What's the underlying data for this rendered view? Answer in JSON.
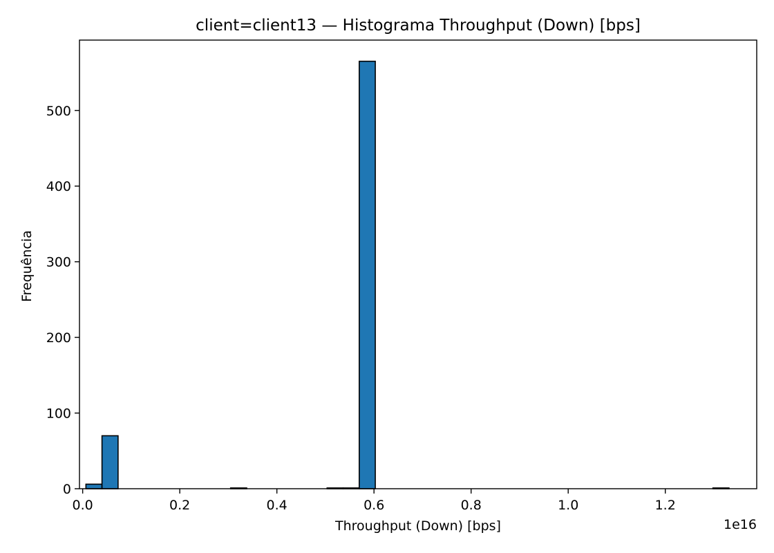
{
  "chart_data": {
    "type": "bar",
    "title": "client=client13 — Histograma Throughput (Down) [bps]",
    "xlabel": "Throughput (Down) [bps]",
    "ylabel": "Frequência",
    "x_offset_label": "1e16",
    "x_scale": 1e+16,
    "xlim": [
      -0.0066,
      1.3883
    ],
    "ylim": [
      0,
      593
    ],
    "bin_width": 0.0331,
    "bins": [
      {
        "start": 0.0067,
        "count": 6
      },
      {
        "start": 0.0398,
        "count": 70
      },
      {
        "start": 0.3047,
        "count": 1
      },
      {
        "start": 0.5034,
        "count": 1
      },
      {
        "start": 0.5365,
        "count": 1
      },
      {
        "start": 0.5696,
        "count": 565
      },
      {
        "start": 1.2981,
        "count": 1
      }
    ],
    "x_ticks": [
      {
        "value": 0.0,
        "label": "0.0"
      },
      {
        "value": 0.2,
        "label": "0.2"
      },
      {
        "value": 0.4,
        "label": "0.4"
      },
      {
        "value": 0.6,
        "label": "0.6"
      },
      {
        "value": 0.8,
        "label": "0.8"
      },
      {
        "value": 1.0,
        "label": "1.0"
      },
      {
        "value": 1.2,
        "label": "1.2"
      }
    ],
    "y_ticks": [
      {
        "value": 0,
        "label": "0"
      },
      {
        "value": 100,
        "label": "100"
      },
      {
        "value": 200,
        "label": "200"
      },
      {
        "value": 300,
        "label": "300"
      },
      {
        "value": 400,
        "label": "400"
      },
      {
        "value": 500,
        "label": "500"
      }
    ],
    "grid": false,
    "bar_color": "#1f77b4",
    "edge_color": "#000000"
  }
}
